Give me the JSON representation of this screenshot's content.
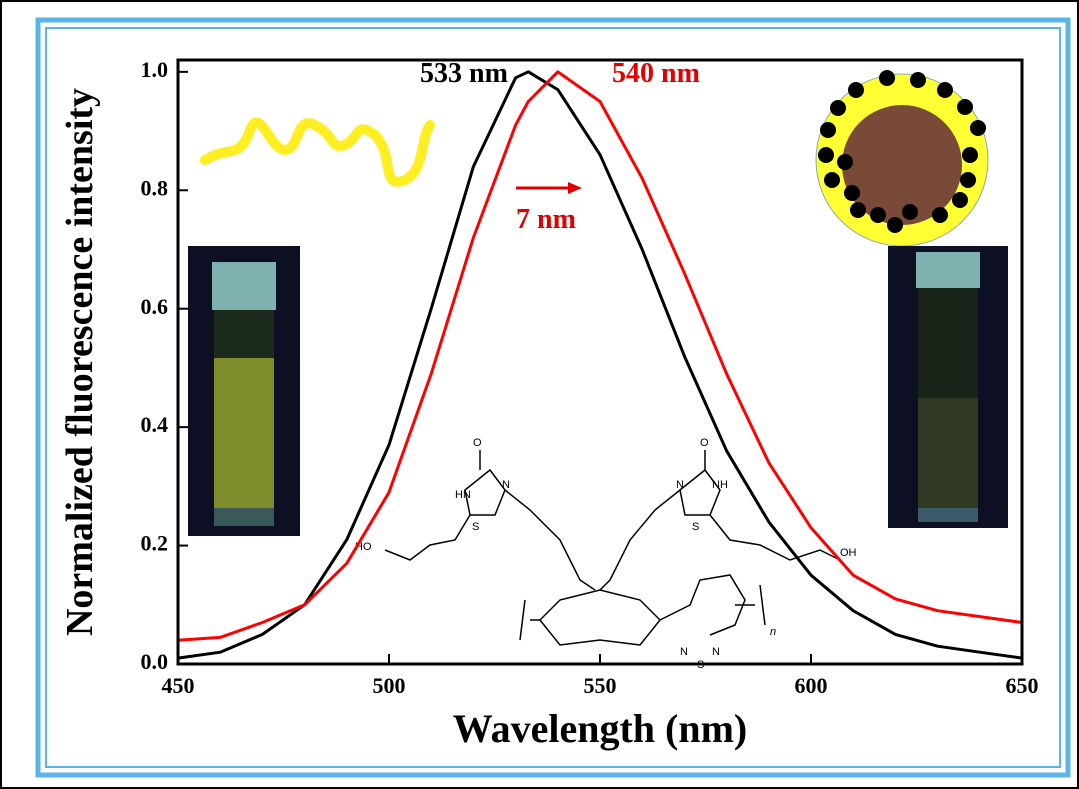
{
  "chart_data": {
    "type": "line",
    "xlabel": "Wavelength (nm)",
    "ylabel": "Normalized fluorescence intensity",
    "x": [
      450,
      460,
      470,
      480,
      490,
      500,
      510,
      520,
      530,
      533,
      540,
      550,
      560,
      570,
      580,
      590,
      600,
      610,
      620,
      630,
      640,
      650
    ],
    "series": [
      {
        "color": "#000000",
        "values": [
          0.01,
          0.02,
          0.05,
          0.1,
          0.21,
          0.37,
          0.6,
          0.84,
          0.99,
          1.0,
          0.97,
          0.86,
          0.7,
          0.52,
          0.36,
          0.24,
          0.15,
          0.09,
          0.05,
          0.03,
          0.02,
          0.01
        ]
      },
      {
        "color": "#ff0000",
        "values": [
          0.04,
          0.045,
          0.07,
          0.1,
          0.17,
          0.29,
          0.49,
          0.72,
          0.91,
          0.95,
          1.0,
          0.95,
          0.82,
          0.66,
          0.49,
          0.34,
          0.23,
          0.15,
          0.11,
          0.09,
          0.08,
          0.07
        ]
      }
    ],
    "xlim": [
      450,
      650
    ],
    "ylim": [
      0,
      1.02
    ],
    "xticks": [
      450,
      500,
      550,
      600,
      650
    ],
    "yticks": [
      {
        "value": 0,
        "label": "0.0"
      },
      {
        "value": 0.2,
        "label": "0.2"
      },
      {
        "value": 0.4,
        "label": "0.4"
      },
      {
        "value": 0.6,
        "label": "0.6"
      },
      {
        "value": 0.8,
        "label": "0.8"
      },
      {
        "value": 1,
        "label": "1.0"
      }
    ],
    "grid": false,
    "annotations": [
      {
        "text": "533 nm",
        "color": "#000000"
      },
      {
        "text": "540 nm",
        "color": "#e00000"
      },
      {
        "text": "7 nm",
        "color": "#e00000"
      }
    ]
  }
}
